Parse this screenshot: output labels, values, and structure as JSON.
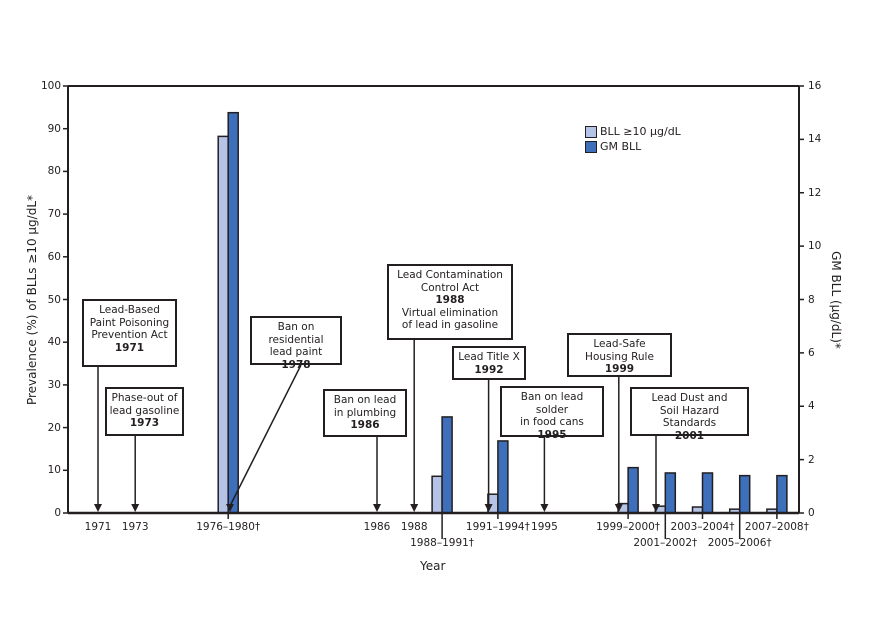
{
  "chart_data": {
    "type": "bar",
    "xlabel": "Year",
    "ylabel": "Prevalence (%) of BLLs ≥10 µg/dL*",
    "y2label": "GM BLL (µg/dL)*",
    "ylim": [
      0,
      100
    ],
    "y2lim": [
      0,
      16
    ],
    "yticks": [
      0,
      10,
      20,
      30,
      40,
      50,
      60,
      70,
      80,
      90,
      100
    ],
    "y2ticks": [
      0,
      2,
      4,
      6,
      8,
      10,
      12,
      14,
      16
    ],
    "categories": [
      "1976–1980†",
      "1988–1991†",
      "1991–1994†",
      "1999–2000†",
      "2001–2002†",
      "2003–2004†",
      "2005–2006†",
      "2007–2008†"
    ],
    "series": [
      {
        "name": "BLL ≥10 µg/dL",
        "axis": "left",
        "color": "#b4c3e6",
        "values": [
          88.2,
          8.6,
          4.4,
          2.2,
          1.6,
          1.4,
          0.9,
          0.9
        ]
      },
      {
        "name": "GM BLL",
        "axis": "right",
        "color": "#3d6fba",
        "values": [
          15.0,
          3.6,
          2.7,
          1.7,
          1.5,
          1.5,
          1.4,
          1.4
        ]
      }
    ],
    "legend": "top-right",
    "year_ticks": [
      "1971",
      "1973",
      "1986",
      "1988",
      "1995"
    ],
    "annotations": [
      {
        "lines": [
          "Lead-Based",
          "Paint Poisoning",
          "Prevention Act"
        ],
        "year": "1971"
      },
      {
        "lines": [
          "Phase-out of",
          "lead gasoline"
        ],
        "year": "1973"
      },
      {
        "lines": [
          "Ban on residential",
          "lead paint"
        ],
        "year": "1978"
      },
      {
        "lines": [
          "Ban on lead",
          "in plumbing"
        ],
        "year": "1986"
      },
      {
        "lines": [
          "Lead Contamination",
          "Control Act"
        ],
        "year": "1988",
        "extra": [
          "Virtual elimination",
          "of lead in gasoline"
        ]
      },
      {
        "lines": [
          "Lead Title X"
        ],
        "year": "1992"
      },
      {
        "lines": [
          "Ban on lead solder",
          "in food cans"
        ],
        "year": "1995"
      },
      {
        "lines": [
          "Lead-Safe",
          "Housing Rule"
        ],
        "year": "1999"
      },
      {
        "lines": [
          "Lead Dust and",
          "Soil Hazard Standards"
        ],
        "year": "2001"
      }
    ]
  }
}
